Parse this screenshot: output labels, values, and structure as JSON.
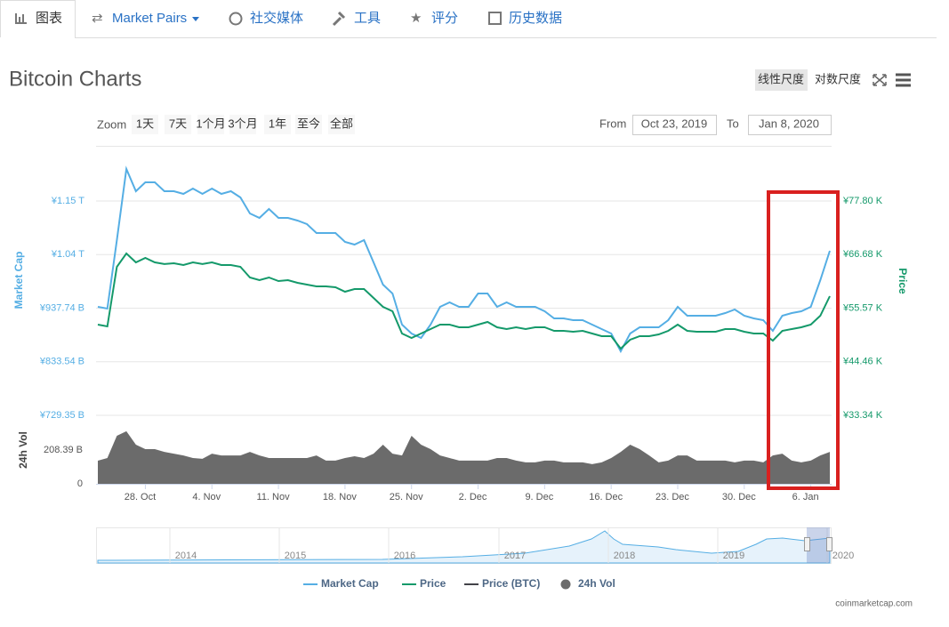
{
  "tabs": [
    "图表",
    "Market Pairs",
    "社交媒体",
    "工具",
    "评分",
    "历史数据"
  ],
  "header": {
    "title": "Bitcoin Charts",
    "scale_buttons": [
      "线性尺度",
      "对数尺度"
    ]
  },
  "range_selector": {
    "zoom_label": "Zoom",
    "buttons": [
      "1天",
      "7天",
      "1个月",
      "3个月",
      "1年",
      "至今",
      "全部"
    ],
    "from_label": "From",
    "from": "Oct 23, 2019",
    "to_label": "To",
    "to": "Jan 8, 2020"
  },
  "chart_data": {
    "type": "line",
    "categories": [
      null,
      null,
      null,
      null,
      null,
      "28. Oct",
      null,
      null,
      null,
      null,
      null,
      null,
      "4. Nov",
      null,
      null,
      null,
      null,
      null,
      null,
      "11. Nov",
      null,
      null,
      null,
      null,
      null,
      null,
      "18. Nov",
      null,
      null,
      null,
      null,
      null,
      null,
      "25. Nov",
      null,
      null,
      null,
      null,
      null,
      null,
      "2. Dec",
      null,
      null,
      null,
      null,
      null,
      null,
      "9. Dec",
      null,
      null,
      null,
      null,
      null,
      null,
      "16. Dec",
      null,
      null,
      null,
      null,
      null,
      null,
      "23. Dec",
      null,
      null,
      null,
      null,
      null,
      null,
      "30. Dec",
      null,
      null,
      null,
      null,
      null,
      null,
      "6. Jan",
      null,
      null
    ],
    "series": [
      {
        "name": "Market Cap",
        "color": "#55aee4",
        "axis": "y",
        "type": "line",
        "values": [
          940400000000.0,
          936900000000.0,
          1070100000000.0,
          1208400000000.0,
          1165200000000.0,
          1182500000000.0,
          1182500000000.0,
          1165200000000.0,
          1165200000000.0,
          1160000000000.0,
          1170400000000.0,
          1160000000000.0,
          1170400000000.0,
          1160000000000.0,
          1165200000000.0,
          1153100000000.0,
          1121900000000.0,
          1113300000000.0,
          1130600000000.0,
          1113300000000.0,
          1113300000000.0,
          1108100000000.0,
          1101200000000.0,
          1083900000000.0,
          1083900000000.0,
          1083900000000.0,
          1066600000000.0,
          1061400000000.0,
          1070100000000.0,
          1026800000000.0,
          983600000000.0,
          966300000000.0,
          905800000000.0,
          888500000000.0,
          879800000000.0,
          905800000000.0,
          940400000000.0,
          949000000000.0,
          940400000000.0,
          940400000000.0,
          966300000000.0,
          966300000000.0,
          940400000000.0,
          949000000000.0,
          940400000000.0,
          940400000000.0,
          940400000000.0,
          931700000000.0,
          917900000000.0,
          917900000000.0,
          914400000000.0,
          914400000000.0,
          905800000000.0,
          897100000000.0,
          888500000000.0,
          853900000000.0,
          888500000000.0,
          900600000000.0,
          900600000000.0,
          900600000000.0,
          914400000000.0,
          940400000000.0,
          923100000000.0,
          923100000000.0,
          923100000000.0,
          923100000000.0,
          928200000000.0,
          935200000000.0,
          923100000000.0,
          917900000000.0,
          914400000000.0,
          893700000000.0,
          923100000000.0,
          928200000000.0,
          931700000000.0,
          940400000000.0,
          992200000000.0,
          1049300000000.0
        ]
      },
      {
        "name": "Price",
        "color": "#14996a",
        "axis": "y2",
        "type": "line",
        "values": [
          52160,
          51790,
          64150,
          66920,
          65070,
          66000,
          65070,
          64710,
          64890,
          64520,
          65070,
          64710,
          65070,
          64520,
          64520,
          64150,
          61940,
          61380,
          61940,
          61200,
          61380,
          60830,
          60460,
          60090,
          60090,
          59910,
          58990,
          59540,
          59540,
          57690,
          55850,
          54930,
          50310,
          49390,
          50310,
          51240,
          52160,
          52160,
          51610,
          51610,
          52160,
          52710,
          51610,
          51240,
          51610,
          51240,
          51610,
          51610,
          50870,
          50870,
          50680,
          50870,
          50310,
          49760,
          49760,
          47180,
          49020,
          49760,
          49760,
          50130,
          50870,
          52160,
          50870,
          50680,
          50680,
          50680,
          51240,
          51240,
          50680,
          50310,
          50310,
          48840,
          50870,
          51240,
          51610,
          52160,
          54000,
          58060
        ]
      },
      {
        "name": "24h Vol",
        "color": "#6b6b6b",
        "axis": "y3",
        "type": "area",
        "values": [
          142600000000.0,
          159000000000.0,
          296000000000.0,
          324000000000.0,
          241000000000.0,
          214000000000.0,
          214000000000.0,
          197000000000.0,
          186000000000.0,
          175000000000.0,
          159000000000.0,
          154000000000.0,
          186000000000.0,
          175000000000.0,
          175000000000.0,
          175000000000.0,
          197000000000.0,
          175000000000.0,
          159000000000.0,
          159000000000.0,
          159000000000.0,
          159000000000.0,
          159000000000.0,
          175000000000.0,
          143000000000.0,
          143000000000.0,
          159000000000.0,
          170000000000.0,
          159000000000.0,
          186000000000.0,
          241000000000.0,
          186000000000.0,
          175000000000.0,
          296000000000.0,
          241000000000.0,
          214000000000.0,
          175000000000.0,
          159000000000.0,
          143000000000.0,
          143000000000.0,
          143000000000.0,
          143000000000.0,
          159000000000.0,
          159000000000.0,
          143000000000.0,
          132000000000.0,
          132000000000.0,
          143000000000.0,
          143000000000.0,
          132000000000.0,
          132000000000.0,
          132000000000.0,
          121000000000.0,
          132000000000.0,
          159000000000.0,
          197000000000.0,
          241000000000.0,
          214000000000.0,
          175000000000.0,
          132000000000.0,
          143000000000.0,
          175000000000.0,
          175000000000.0,
          143000000000.0,
          143000000000.0,
          143000000000.0,
          143000000000.0,
          132000000000.0,
          143000000000.0,
          143000000000.0,
          132000000000.0,
          175000000000.0,
          186000000000.0,
          143000000000.0,
          132000000000.0,
          143000000000.0,
          175000000000.0,
          197000000000.0
        ]
      }
    ],
    "hidden_series": [
      {
        "name": "Price (BTC)",
        "color": "#434348"
      }
    ],
    "y_label": "Market Cap",
    "y2_label": "Price",
    "y3_label": "24h Vol",
    "ylim": [
      729350000000.0,
      1251600000000.0
    ],
    "yticks": [
      {
        "value": 729350000000.0,
        "label": "¥729.35 B"
      },
      {
        "value": 833540000000.0,
        "label": "¥833.54 B"
      },
      {
        "value": 937740000000.0,
        "label": "¥937.74 B"
      },
      {
        "value": 1041930000000.0,
        "label": "¥1.04 T"
      },
      {
        "value": 1146120000000.0,
        "label": "¥1.15 T"
      }
    ],
    "y2lim": [
      33340,
      89050
    ],
    "y2ticks": [
      {
        "value": 33340,
        "label": "¥33.34 K"
      },
      {
        "value": 44460,
        "label": "¥44.46 K"
      },
      {
        "value": 55570,
        "label": "¥55.57 K"
      },
      {
        "value": 66680,
        "label": "¥66.68 K"
      },
      {
        "value": 77800,
        "label": "¥77.80 K"
      }
    ],
    "y3lim": [
      0,
      422000000000.0
    ],
    "y3ticks": [
      0,
      {
        "value": 208390000000.0,
        "label": "208.39 B"
      }
    ],
    "grid": true,
    "navigator": {
      "labels": [
        "2014",
        "2015",
        "2016",
        "2017",
        "2018",
        "2019",
        "2020"
      ]
    }
  },
  "credit": "coinmarketcap.com"
}
